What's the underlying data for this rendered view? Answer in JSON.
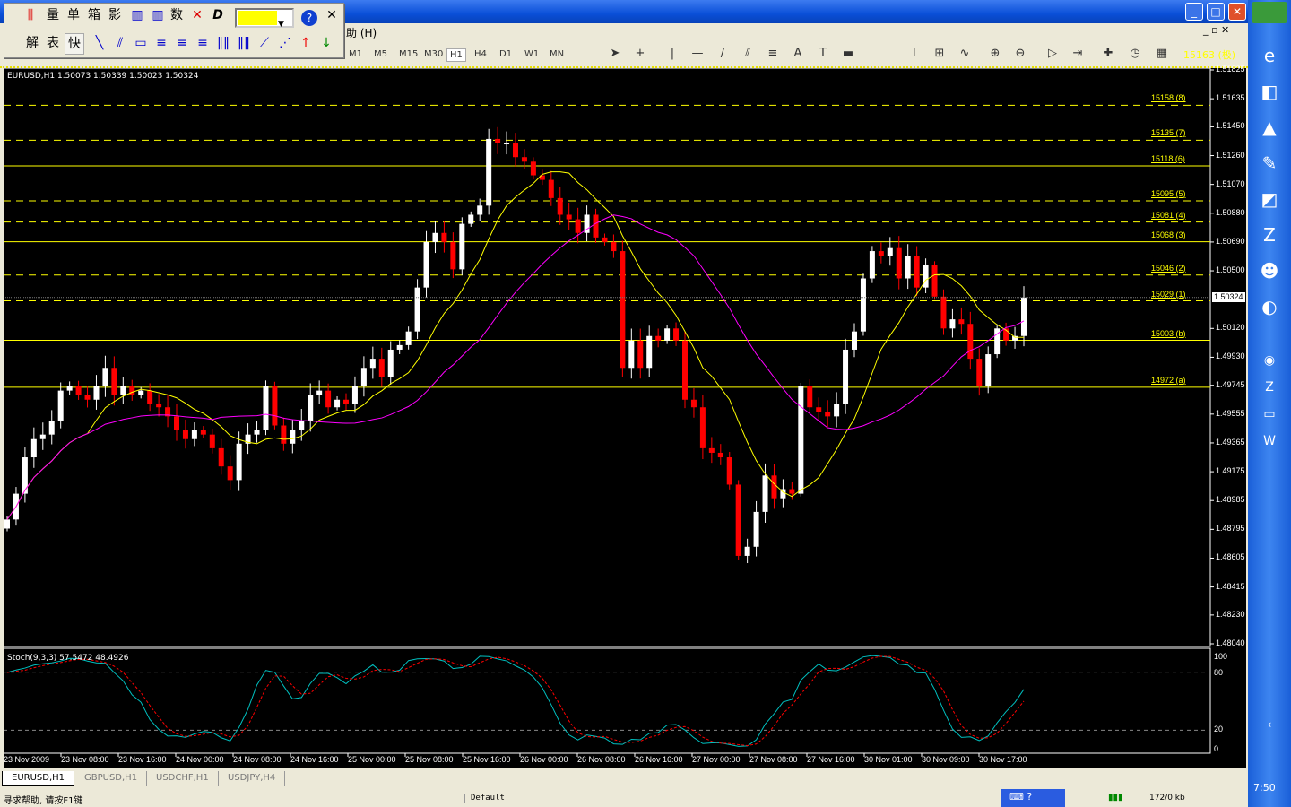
{
  "window": {
    "menu_help": "助 (H)"
  },
  "float_toolbar": {
    "row1": [
      "量",
      "单",
      "箱",
      "影",
      "数"
    ],
    "row2": [
      "解",
      "表",
      "快"
    ],
    "color": "#ffff00"
  },
  "timeframes": [
    "M1",
    "M5",
    "M15",
    "M30",
    "H1",
    "H4",
    "D1",
    "W1",
    "MN"
  ],
  "active_timeframe": "H1",
  "toolbar_overlay_text": "15163 (极)",
  "chart": {
    "header": "EURUSD,H1  1.50073 1.50339 1.50023 1.50324",
    "symbol": "EURUSD",
    "timeframe": "H1",
    "last_price": "1.50324",
    "price_axis": [
      "1.51825",
      "1.51635",
      "1.51450",
      "1.51260",
      "1.51070",
      "1.50880",
      "1.50690",
      "1.50500",
      "1.50120",
      "1.49930",
      "1.49745",
      "1.49555",
      "1.49365",
      "1.49175",
      "1.48985",
      "1.48795",
      "1.48605",
      "1.48415",
      "1.48230",
      "1.48040"
    ],
    "time_axis": [
      "23 Nov 2009",
      "23 Nov 08:00",
      "23 Nov 16:00",
      "24 Nov 00:00",
      "24 Nov 08:00",
      "24 Nov 16:00",
      "25 Nov 00:00",
      "25 Nov 08:00",
      "25 Nov 16:00",
      "26 Nov 00:00",
      "26 Nov 08:00",
      "26 Nov 16:00",
      "27 Nov 00:00",
      "27 Nov 08:00",
      "27 Nov 16:00",
      "30 Nov 01:00",
      "30 Nov 09:00",
      "30 Nov 17:00"
    ],
    "levels": [
      {
        "label": "15158 (8)",
        "price": 1.5158,
        "style": "dashed"
      },
      {
        "label": "15135 (7)",
        "price": 1.5135,
        "style": "dashed"
      },
      {
        "label": "15118 (6)",
        "price": 1.5118,
        "style": "solid"
      },
      {
        "label": "15095 (5)",
        "price": 1.5095,
        "style": "dashed"
      },
      {
        "label": "15081 (4)",
        "price": 1.5081,
        "style": "dashed"
      },
      {
        "label": "15068 (3)",
        "price": 1.5068,
        "style": "solid"
      },
      {
        "label": "15046 (2)",
        "price": 1.5046,
        "style": "dashed"
      },
      {
        "label": "15029 (1)",
        "price": 1.5029,
        "style": "dashed"
      },
      {
        "label": "15003 (b)",
        "price": 1.5003,
        "style": "solid"
      },
      {
        "label": "14972 (a)",
        "price": 1.4972,
        "style": "solid"
      }
    ],
    "closes": [
      1.4886,
      1.4903,
      1.4927,
      1.4939,
      1.4942,
      1.4951,
      1.4971,
      1.4974,
      1.4968,
      1.4965,
      1.4974,
      1.4986,
      1.4968,
      1.4974,
      1.4968,
      1.4971,
      1.4962,
      1.496,
      1.4954,
      1.4945,
      1.4939,
      1.4945,
      1.4942,
      1.4933,
      1.4921,
      1.4912,
      1.4936,
      1.4942,
      1.4945,
      1.4974,
      1.4948,
      1.4936,
      1.4945,
      1.4951,
      1.4968,
      1.4971,
      1.496,
      1.4965,
      1.4962,
      1.4974,
      1.4986,
      1.4992,
      1.498,
      1.4998,
      1.5001,
      1.501,
      1.5039,
      1.5069,
      1.5075,
      1.5069,
      1.5051,
      1.5081,
      1.5087,
      1.5093,
      1.5137,
      1.5134,
      1.5134,
      1.5125,
      1.5122,
      1.5113,
      1.511,
      1.5098,
      1.5087,
      1.5084,
      1.5075,
      1.5087,
      1.5072,
      1.5069,
      1.5063,
      1.4986,
      1.5004,
      1.4986,
      1.5007,
      1.5004,
      1.5012,
      1.5004,
      1.4965,
      1.496,
      1.4933,
      1.493,
      1.4927,
      1.4909,
      1.4862,
      1.4868,
      1.4891,
      1.4915,
      1.49,
      1.4906,
      1.4903,
      1.4974,
      1.496,
      1.4957,
      1.4954,
      1.4962,
      1.4998,
      1.501,
      1.5045,
      1.5063,
      1.506,
      1.5065,
      1.5045,
      1.506,
      1.5039,
      1.5054,
      1.5033,
      1.5012,
      1.5018,
      1.5015,
      1.4992,
      1.4974,
      1.4995,
      1.5012,
      1.5004,
      1.5007,
      1.50324
    ],
    "ma_colors": [
      "#ffff00",
      "#ff00ff"
    ],
    "bull_color": "#ffffff",
    "bear_color": "#ff0000"
  },
  "stoch": {
    "header": "Stoch(9,3,3) 57.5472 48.4926",
    "axis": [
      "100",
      "80",
      "20",
      "0"
    ],
    "main_color": "#00c0c0",
    "signal_color": "#ff0000"
  },
  "tabs": [
    "EURUSD,H1",
    "GBPUSD,H1",
    "USDCHF,H1",
    "USDJPY,H4"
  ],
  "status": {
    "help": "寻求帮助, 请按F1键",
    "profile": "Default",
    "traffic": "172/0 kb"
  },
  "clock": "7:50"
}
